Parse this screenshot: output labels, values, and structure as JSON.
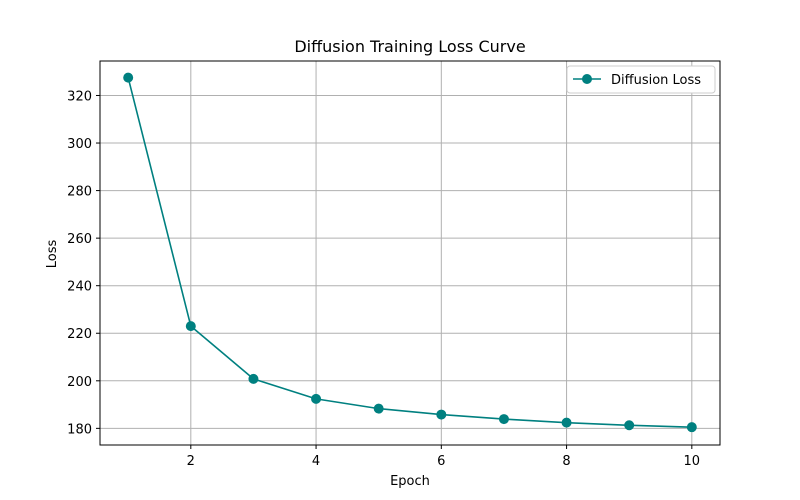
{
  "chart_data": {
    "type": "line",
    "title": "Diffusion Training Loss Curve",
    "xlabel": "Epoch",
    "ylabel": "Loss",
    "x": [
      1,
      2,
      3,
      4,
      5,
      6,
      7,
      8,
      9,
      10
    ],
    "series": [
      {
        "name": "Diffusion Loss",
        "color": "#008080",
        "marker": "circle",
        "values": [
          327.5,
          223.0,
          200.8,
          192.4,
          188.3,
          185.8,
          183.9,
          182.4,
          181.3,
          180.5
        ]
      }
    ],
    "xlim": [
      0.55,
      10.45
    ],
    "ylim": [
      173.0,
      334.5
    ],
    "x_ticks": [
      2,
      4,
      6,
      8,
      10
    ],
    "y_ticks": [
      180,
      200,
      220,
      240,
      260,
      280,
      300,
      320
    ],
    "grid": true,
    "legend_position": "top-right"
  }
}
